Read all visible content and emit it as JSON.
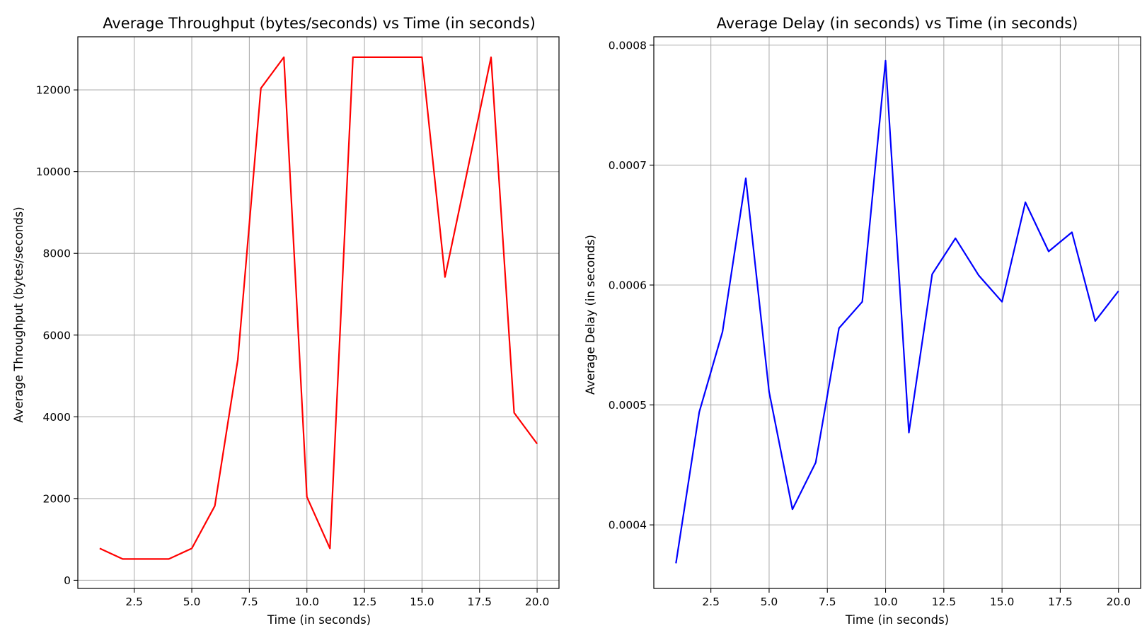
{
  "chart_data": [
    {
      "type": "line",
      "title": "Average Throughput (bytes/seconds) vs Time (in seconds)",
      "xlabel": "Time (in seconds)",
      "ylabel": "Average Throughput (bytes/seconds)",
      "grid": true,
      "color": "#ff0000",
      "xlim": [
        0.05,
        20.95
      ],
      "ylim": [
        -200,
        13300
      ],
      "xticks": [
        2.5,
        5.0,
        7.5,
        10.0,
        12.5,
        15.0,
        17.5,
        20.0
      ],
      "xtick_labels": [
        "2.5",
        "5.0",
        "7.5",
        "10.0",
        "12.5",
        "15.0",
        "17.5",
        "20.0"
      ],
      "yticks": [
        0,
        2000,
        4000,
        6000,
        8000,
        10000,
        12000
      ],
      "ytick_labels": [
        "0",
        "2000",
        "4000",
        "6000",
        "8000",
        "10000",
        "12000"
      ],
      "series": [
        {
          "name": "Average Throughput",
          "x": [
            1,
            2,
            3,
            4,
            5,
            6,
            7,
            8,
            9,
            10,
            11,
            12,
            13,
            14,
            15,
            16,
            17,
            18,
            19,
            20
          ],
          "values": [
            780,
            520,
            520,
            520,
            780,
            1820,
            5400,
            12040,
            12800,
            2040,
            780,
            12800,
            12800,
            12800,
            12800,
            7420,
            10100,
            12800,
            4100,
            3340
          ]
        }
      ]
    },
    {
      "type": "line",
      "title": "Average Delay (in seconds) vs Time (in seconds)",
      "xlabel": "Time (in seconds)",
      "ylabel": "Average Delay (in seconds)",
      "grid": true,
      "color": "#0000ff",
      "xlim": [
        0.05,
        20.95
      ],
      "ylim": [
        0.000347,
        0.000807
      ],
      "xticks": [
        2.5,
        5.0,
        7.5,
        10.0,
        12.5,
        15.0,
        17.5,
        20.0
      ],
      "xtick_labels": [
        "2.5",
        "5.0",
        "7.5",
        "10.0",
        "12.5",
        "15.0",
        "17.5",
        "20.0"
      ],
      "yticks": [
        0.0004,
        0.0005,
        0.0006,
        0.0007,
        0.0008
      ],
      "ytick_labels": [
        "0.0004",
        "0.0005",
        "0.0006",
        "0.0007",
        "0.0008"
      ],
      "series": [
        {
          "name": "Average Delay",
          "x": [
            1,
            2,
            3,
            4,
            5,
            6,
            7,
            8,
            9,
            10,
            11,
            12,
            13,
            14,
            15,
            16,
            17,
            18,
            19,
            20
          ],
          "values": [
            0.000368,
            0.000494,
            0.000561,
            0.000689,
            0.000511,
            0.000413,
            0.000452,
            0.000564,
            0.000586,
            0.000787,
            0.000477,
            0.000609,
            0.000639,
            0.000608,
            0.000586,
            0.000669,
            0.000628,
            0.000644,
            0.00057,
            0.000595
          ]
        }
      ]
    }
  ]
}
